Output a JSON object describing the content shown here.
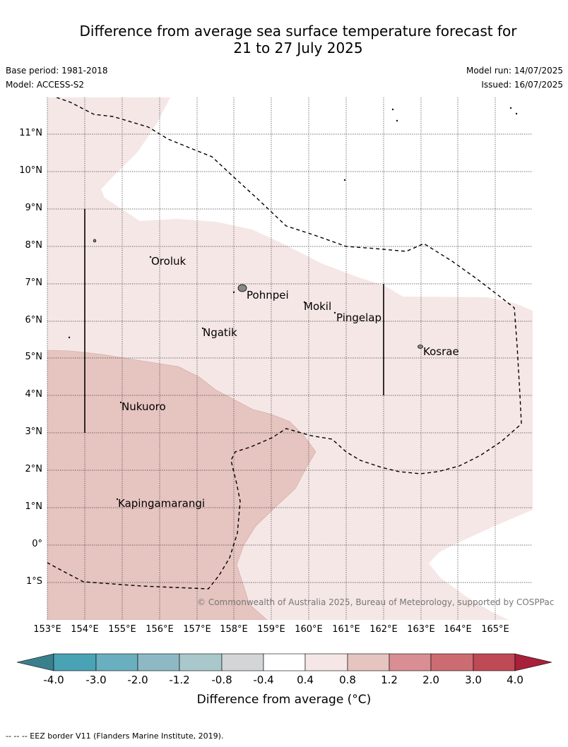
{
  "title_line1": "Difference from average sea surface temperature forecast for",
  "title_line2": "21 to 27 July 2025",
  "base_period": "Base period: 1981-2018",
  "model": "Model: ACCESS-S2",
  "model_run": "Model run: 14/07/2025",
  "issued": "Issued: 16/07/2025",
  "latitudes": [
    "11°N",
    "10°N",
    "9°N",
    "8°N",
    "7°N",
    "6°N",
    "5°N",
    "4°N",
    "3°N",
    "2°N",
    "1°N",
    "0°",
    "1°S"
  ],
  "longitudes": [
    "153°E",
    "154°E",
    "155°E",
    "156°E",
    "157°E",
    "158°E",
    "159°E",
    "160°E",
    "161°E",
    "162°E",
    "163°E",
    "164°E",
    "165°E"
  ],
  "places": {
    "oroluk": "Oroluk",
    "pohnpei": "Pohnpei",
    "mokil": "Mokil",
    "pingelap": "Pingelap",
    "ngatik": "Ngatik",
    "kosrae": "Kosrae",
    "nukuoro": "Nukuoro",
    "kapingamarangi": "Kapingamarangi"
  },
  "copyright": "© Commonwealth of Australia 2025, Bureau of Meteorology, supported by COSPPac",
  "colorbar": {
    "title": "Difference from average (°C)",
    "ticks": [
      "-4.0",
      "-3.0",
      "-2.0",
      "-1.2",
      "-0.8",
      "-0.4",
      "0.4",
      "0.8",
      "1.2",
      "2.0",
      "3.0",
      "4.0"
    ],
    "colors": [
      "#49a3b5",
      "#6aafbf",
      "#8db9c4",
      "#a9c8cc",
      "#d3d6d6",
      "#ffffff",
      "#f5e7e6",
      "#e6c4bf",
      "#d98e93",
      "#cd6b73",
      "#c04956"
    ],
    "under_color": "#3a7f8c",
    "over_color": "#a8203a"
  },
  "legend_note": "--  --  -- EEZ border V11 (Flanders Marine Institute, 2019)."
}
